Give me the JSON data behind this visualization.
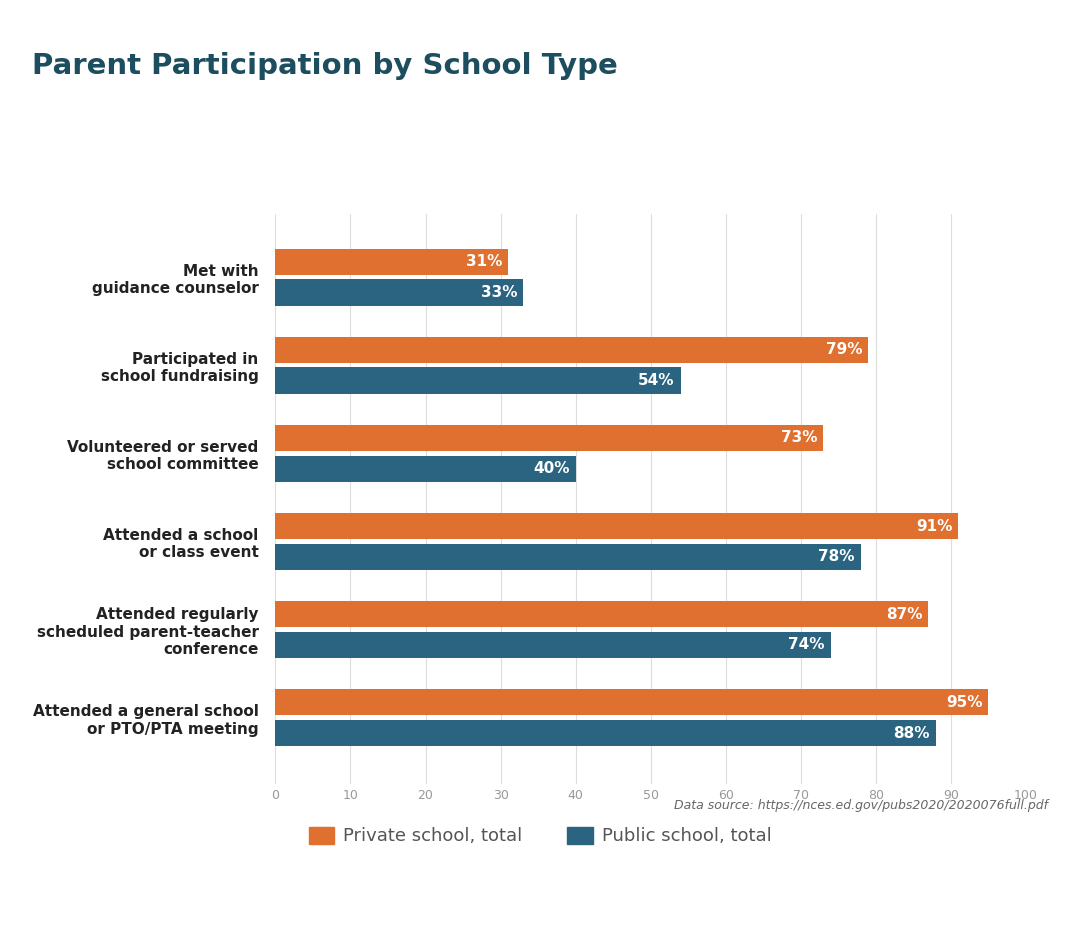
{
  "title": "Parent Participation by School Type",
  "title_color": "#1d4e5f",
  "title_underline_color": "#8dc63f",
  "categories": [
    "Attended a general school\nor PTO/PTA meeting",
    "Attended regularly\nscheduled parent-teacher\nconference",
    "Attended a school\nor class event",
    "Volunteered or served\nschool committee",
    "Participated in\nschool fundraising",
    "Met with\nguidance counselor"
  ],
  "private_values": [
    95,
    87,
    91,
    73,
    79,
    31
  ],
  "public_values": [
    88,
    74,
    78,
    40,
    54,
    33
  ],
  "private_color": "#e07030",
  "public_color": "#2a6480",
  "private_label": "Private school, total",
  "public_label": "Public school, total",
  "bar_height": 0.3,
  "xlim": [
    0,
    100
  ],
  "xticks": [
    0,
    10,
    20,
    30,
    40,
    50,
    60,
    70,
    80,
    90,
    100
  ],
  "background_color": "#ffffff",
  "grid_color": "#dddddd",
  "label_color": "#ffffff",
  "label_fontsize": 11,
  "ylabel_fontsize": 11,
  "ylabel_color": "#222222",
  "ylabels_bg_color": "#eeeeee",
  "source_text": "Data source: https://nces.ed.gov/pubs2020/2020076full.pdf",
  "footer_color": "#1d4e5f",
  "legend_text_color": "#555555"
}
